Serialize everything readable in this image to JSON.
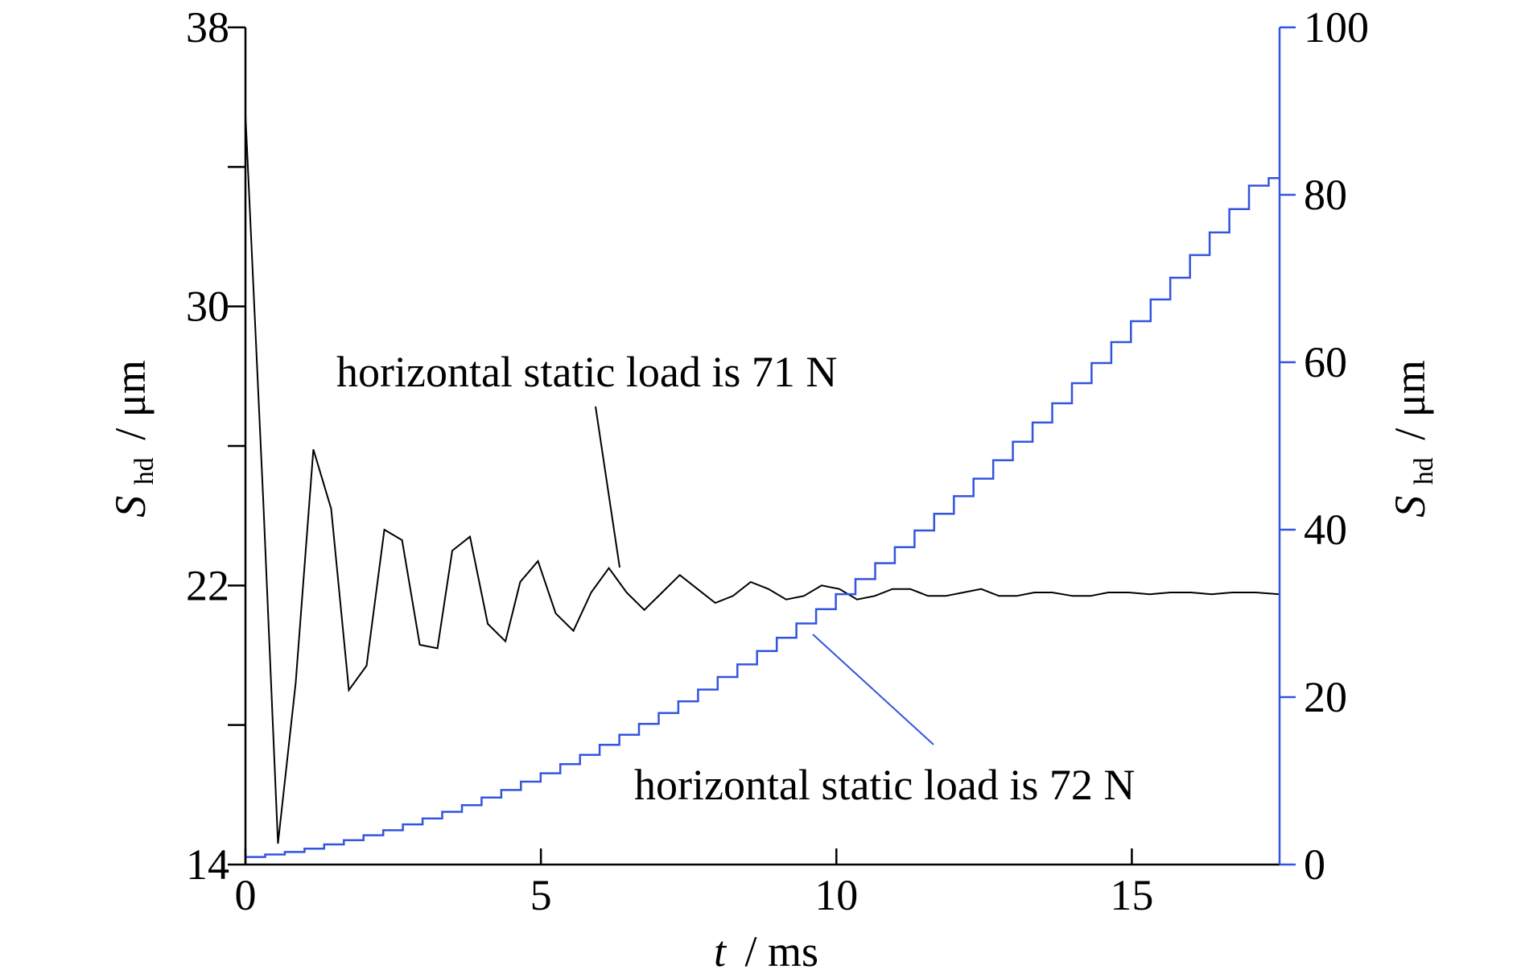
{
  "chart_data": {
    "type": "line",
    "title": "",
    "xlabel": {
      "var": "t",
      "unit": "/ ms"
    },
    "ylabel_left": {
      "var": "S",
      "sub": "hd",
      "unit": "/ μm"
    },
    "ylabel_right": {
      "var": "S",
      "sub": "hd",
      "unit": "/ μm"
    },
    "xlim": [
      0,
      17.5
    ],
    "ylim_left": [
      14,
      38
    ],
    "ylim_right": [
      0,
      100
    ],
    "x_ticks": [
      0,
      5,
      10,
      15
    ],
    "x_tick_labels": [
      "0",
      "5",
      "10",
      "15"
    ],
    "y_left_ticks": [
      14,
      18,
      22,
      26,
      30,
      34,
      38
    ],
    "y_left_tick_labels": [
      "14",
      "",
      "22",
      "",
      "30",
      "",
      "38"
    ],
    "y_right_ticks": [
      0,
      20,
      40,
      60,
      80,
      100
    ],
    "y_right_tick_labels": [
      "0",
      "20",
      "40",
      "60",
      "80",
      "100"
    ],
    "grid": false,
    "colors": {
      "left_axis": "#000000",
      "right_axis": "#3355dd",
      "series_71": "#000000",
      "series_72": "#3355dd"
    },
    "series": [
      {
        "name": "horizontal static load is 71 N",
        "axis": "left",
        "x": [
          0,
          0.3,
          0.55,
          0.85,
          1.15,
          1.45,
          1.75,
          2.05,
          2.35,
          2.65,
          2.95,
          3.25,
          3.5,
          3.8,
          4.1,
          4.4,
          4.65,
          4.95,
          5.25,
          5.55,
          5.85,
          6.15,
          6.45,
          6.75,
          7.05,
          7.35,
          7.65,
          7.95,
          8.25,
          8.55,
          8.85,
          9.15,
          9.45,
          9.75,
          10.05,
          10.35,
          10.65,
          10.95,
          11.25,
          11.55,
          11.85,
          12.15,
          12.45,
          12.75,
          13.05,
          13.35,
          13.65,
          14.0,
          14.3,
          14.6,
          14.95,
          15.3,
          15.65,
          16.0,
          16.35,
          16.7,
          17.1,
          17.5
        ],
        "y": [
          35.5,
          24.5,
          14.6,
          19.2,
          25.9,
          24.2,
          19.0,
          19.7,
          23.6,
          23.3,
          20.3,
          20.2,
          23.0,
          23.4,
          20.9,
          20.4,
          22.1,
          22.7,
          21.2,
          20.7,
          21.8,
          22.5,
          21.8,
          21.3,
          21.8,
          22.3,
          21.9,
          21.5,
          21.7,
          22.1,
          21.9,
          21.6,
          21.7,
          22.0,
          21.9,
          21.6,
          21.7,
          21.9,
          21.9,
          21.7,
          21.7,
          21.8,
          21.9,
          21.7,
          21.7,
          21.8,
          21.8,
          21.7,
          21.7,
          21.8,
          21.8,
          21.75,
          21.8,
          21.8,
          21.75,
          21.8,
          21.8,
          21.75
        ]
      },
      {
        "name": "horizontal static load is 72 N",
        "axis": "right",
        "style": "step",
        "x_start": 0,
        "x_step": 0.333,
        "y_formula_note": "",
        "y": [
          0.9,
          1.2,
          1.5,
          1.9,
          2.4,
          2.9,
          3.5,
          4.1,
          4.8,
          5.5,
          6.3,
          7.1,
          8.0,
          8.9,
          9.9,
          10.9,
          12.0,
          13.1,
          14.3,
          15.5,
          16.8,
          18.1,
          19.5,
          20.9,
          22.4,
          23.9,
          25.5,
          27.1,
          28.8,
          30.5,
          32.3,
          34.1,
          36.0,
          37.9,
          39.9,
          41.9,
          44.0,
          46.1,
          48.3,
          50.5,
          52.8,
          55.1,
          57.5,
          59.9,
          62.4,
          64.9,
          67.5,
          70.1,
          72.8,
          75.5,
          78.3,
          81.1,
          82.0
        ]
      }
    ],
    "annotations": [
      {
        "text": "horizontal static load is 71 N"
      },
      {
        "text": "horizontal static load is 72 N"
      }
    ]
  }
}
